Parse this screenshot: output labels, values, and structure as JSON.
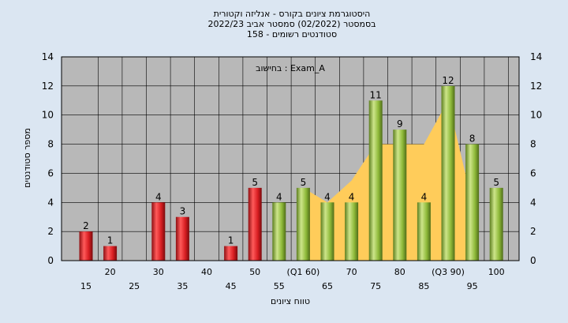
{
  "chart_data": {
    "type": "bar",
    "title_lines": [
      "היסטוגרמת ציונים בקורס - אנליזה וקטורית",
      "בסמסטר  (02/2022)  סמסטר אביב 2022/23",
      "סטודנטים רשומים - 158"
    ],
    "annotation": "בחישוב : Exam_A",
    "xlabel": "טווח ציונים",
    "ylabel": "מספר סטודנטים",
    "ylim": [
      0,
      14
    ],
    "y_ticks": [
      0,
      2,
      4,
      6,
      8,
      10,
      12,
      14
    ],
    "grid": true,
    "categories": [
      "15",
      "20",
      "25",
      "30",
      "35",
      "40",
      "45",
      "50",
      "55",
      "(Q1 60)",
      "65",
      "70",
      "75",
      "80",
      "85",
      "(Q3 90)",
      "95",
      "100"
    ],
    "values": [
      2,
      1,
      0,
      4,
      3,
      0,
      1,
      5,
      4,
      5,
      4,
      4,
      11,
      9,
      4,
      12,
      8,
      5
    ],
    "colors": {
      "fail": "#e0262a",
      "pass": "#96c040",
      "band": "#ffcc5a",
      "plot_bg": "#b8b8b8",
      "outer_bg": "#dbe6f2"
    },
    "band_series": [
      null,
      null,
      null,
      null,
      null,
      null,
      null,
      null,
      null,
      5,
      4,
      5.5,
      8,
      8,
      8,
      11,
      4,
      null
    ]
  }
}
